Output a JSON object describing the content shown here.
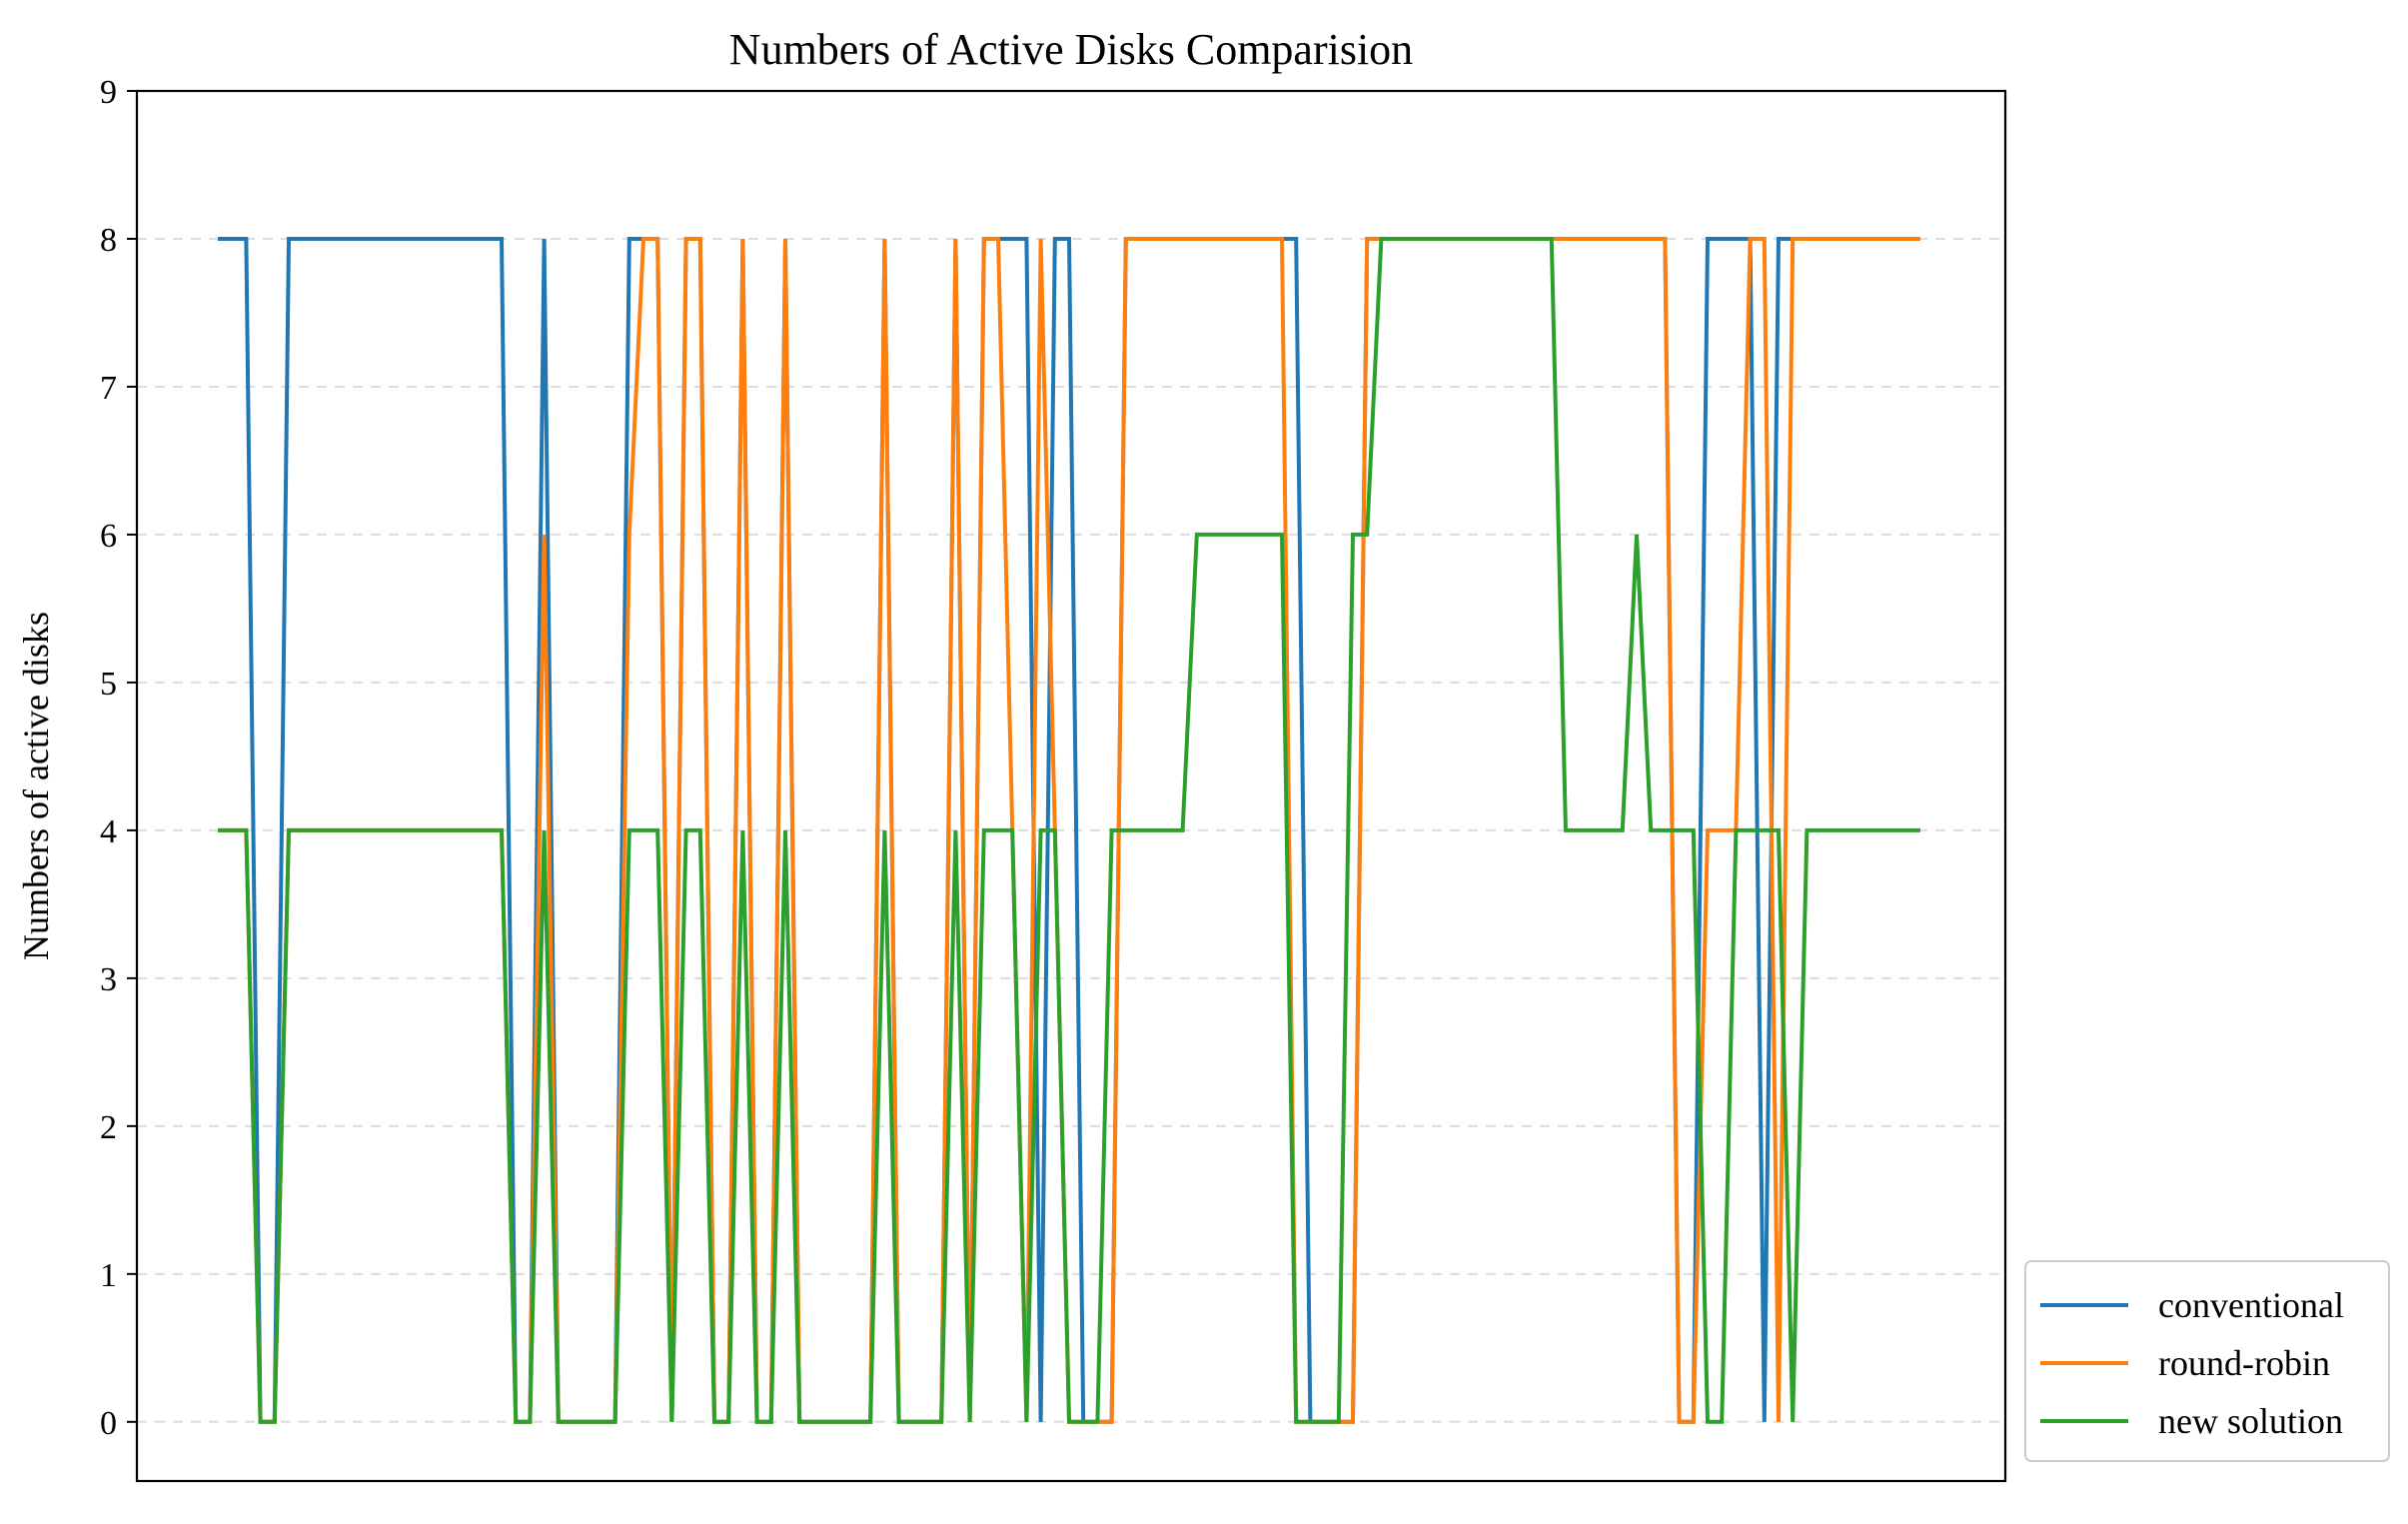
{
  "chart_data": {
    "type": "line",
    "title": "Numbers of Active Disks Comparision",
    "xlabel": "",
    "ylabel": "Numbers of active disks",
    "ylim": [
      -0.4,
      9
    ],
    "yticks": [
      0,
      1,
      2,
      3,
      4,
      5,
      6,
      7,
      8,
      9
    ],
    "x_tick_labels": "none",
    "grid": "horizontal dashed",
    "legend_position": "lower-right outside",
    "x": [
      0,
      1,
      2,
      3,
      4,
      5,
      6,
      7,
      8,
      9,
      10,
      11,
      12,
      13,
      14,
      15,
      16,
      17,
      18,
      19,
      20,
      21,
      22,
      23,
      24,
      25,
      26,
      27,
      28,
      29,
      30,
      31,
      32,
      33,
      34,
      35,
      36,
      37,
      38,
      39,
      40,
      41,
      42,
      43,
      44,
      45,
      46,
      47,
      48,
      49,
      50,
      51,
      52,
      53,
      54,
      55,
      56,
      57,
      58,
      59,
      60,
      61,
      62,
      63,
      64,
      65,
      66,
      67,
      68,
      69,
      70,
      71,
      72,
      73,
      74,
      75,
      76,
      77,
      78,
      79,
      80,
      81,
      82,
      83,
      84,
      85,
      86,
      87,
      88,
      89,
      90,
      91,
      92,
      93,
      94,
      95,
      96,
      97,
      98,
      99,
      100,
      101,
      102,
      103,
      104,
      105,
      106,
      107,
      108,
      109,
      110,
      111,
      112,
      113,
      114,
      115,
      116,
      117,
      118,
      119,
      120
    ],
    "series": [
      {
        "name": "conventional",
        "color": "#1f77b4",
        "values": [
          8,
          8,
          8,
          0,
          0,
          8,
          8,
          8,
          8,
          8,
          8,
          8,
          8,
          8,
          8,
          8,
          8,
          8,
          8,
          8,
          8,
          0,
          0,
          8,
          0,
          0,
          0,
          0,
          0,
          8,
          8,
          8,
          0,
          8,
          8,
          0,
          0,
          8,
          0,
          0,
          8,
          0,
          0,
          0,
          0,
          0,
          0,
          8,
          0,
          0,
          0,
          0,
          8,
          0,
          8,
          8,
          8,
          8,
          0,
          8,
          8,
          0,
          0,
          0,
          8,
          8,
          8,
          8,
          8,
          8,
          8,
          8,
          8,
          8,
          8,
          8,
          8,
          0,
          0,
          0,
          0,
          8,
          8,
          8,
          8,
          8,
          8,
          8,
          8,
          8,
          8,
          8,
          8,
          8,
          8,
          8,
          8,
          8,
          8,
          8,
          8,
          8,
          8,
          0,
          0,
          8,
          8,
          8,
          8,
          0,
          8,
          8,
          8,
          8,
          8,
          8,
          8,
          8,
          8,
          8,
          8
        ]
      },
      {
        "name": "round-robin",
        "color": "#ff7f0e",
        "values": [
          4,
          4,
          4,
          0,
          0,
          4,
          4,
          4,
          4,
          4,
          4,
          4,
          4,
          4,
          4,
          4,
          4,
          4,
          4,
          4,
          4,
          0,
          0,
          6,
          0,
          0,
          0,
          0,
          0,
          6,
          8,
          8,
          0,
          8,
          8,
          0,
          0,
          8,
          0,
          0,
          8,
          0,
          0,
          0,
          0,
          0,
          0,
          8,
          0,
          0,
          0,
          0,
          8,
          0,
          8,
          8,
          4,
          0,
          8,
          4,
          0,
          0,
          0,
          0,
          8,
          8,
          8,
          8,
          8,
          8,
          8,
          8,
          8,
          8,
          8,
          8,
          0,
          0,
          0,
          0,
          0,
          8,
          8,
          8,
          8,
          8,
          8,
          8,
          8,
          8,
          8,
          8,
          8,
          8,
          8,
          8,
          8,
          8,
          8,
          8,
          8,
          8,
          8,
          0,
          0,
          4,
          4,
          4,
          8,
          8,
          0,
          8,
          8,
          8,
          8,
          8,
          8,
          8,
          8,
          8,
          8
        ]
      },
      {
        "name": "new solution",
        "color": "#2ca02c",
        "values": [
          4,
          4,
          4,
          0,
          0,
          4,
          4,
          4,
          4,
          4,
          4,
          4,
          4,
          4,
          4,
          4,
          4,
          4,
          4,
          4,
          4,
          0,
          0,
          4,
          0,
          0,
          0,
          0,
          0,
          4,
          4,
          4,
          0,
          4,
          4,
          0,
          0,
          4,
          0,
          0,
          4,
          0,
          0,
          0,
          0,
          0,
          0,
          4,
          0,
          0,
          0,
          0,
          4,
          0,
          4,
          4,
          4,
          0,
          4,
          4,
          0,
          0,
          0,
          4,
          4,
          4,
          4,
          4,
          4,
          6,
          6,
          6,
          6,
          6,
          6,
          6,
          0,
          0,
          0,
          0,
          6,
          6,
          8,
          8,
          8,
          8,
          8,
          8,
          8,
          8,
          8,
          8,
          8,
          8,
          8,
          4,
          4,
          4,
          4,
          4,
          6,
          4,
          4,
          4,
          4,
          0,
          0,
          4,
          4,
          4,
          4,
          0,
          4,
          4,
          4,
          4,
          4,
          4,
          4,
          4,
          4
        ]
      }
    ]
  }
}
